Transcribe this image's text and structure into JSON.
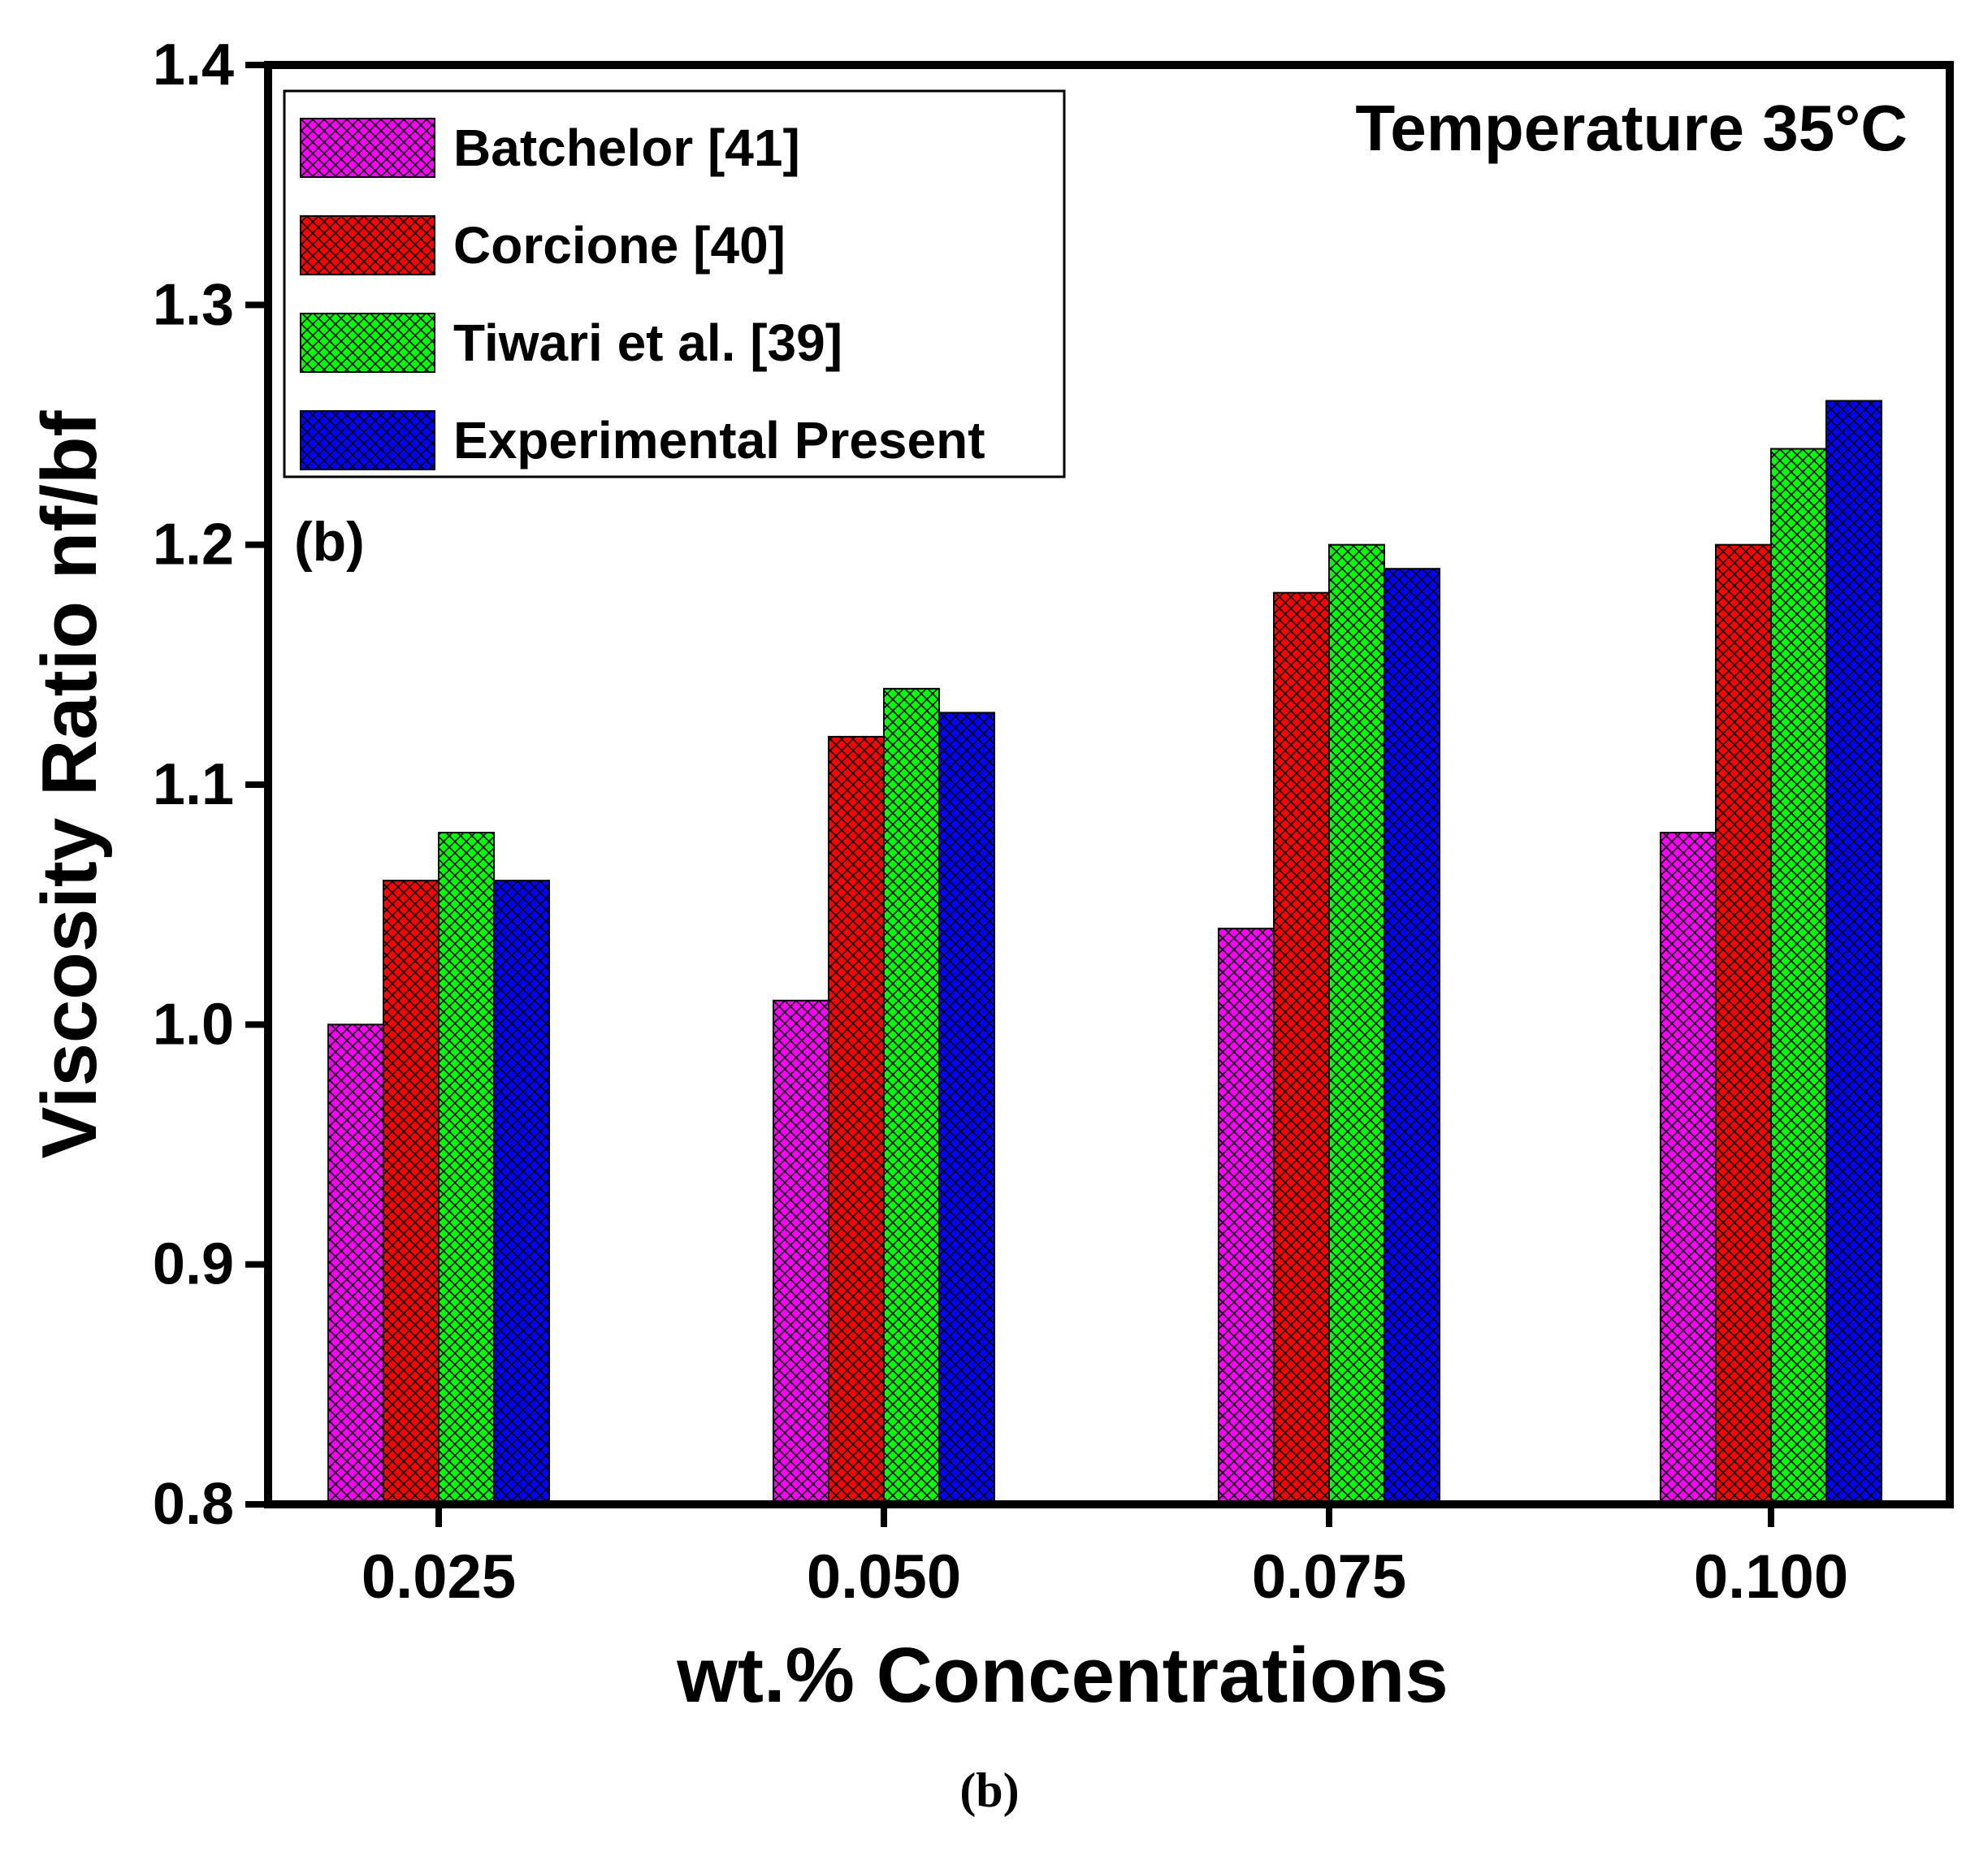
{
  "figure_caption": "(b)",
  "chart_data": {
    "type": "bar",
    "title": "Temperature 35°C",
    "panel_label": "(b)",
    "xlabel": "wt.% Concentrations",
    "ylabel": "Viscosity Ratio nf/bf",
    "categories": [
      "0.025",
      "0.050",
      "0.075",
      "0.100"
    ],
    "ylim": [
      0.8,
      1.4
    ],
    "yticks": [
      "0.8",
      "0.9",
      "1.0",
      "1.1",
      "1.2",
      "1.3",
      "1.4"
    ],
    "grid": false,
    "legend_position": "top-left",
    "series": [
      {
        "name": "Batchelor [41]",
        "color": "#ff00ff",
        "values": [
          1.0,
          1.01,
          1.04,
          1.08
        ]
      },
      {
        "name": "Corcione [40]",
        "color": "#ff0000",
        "values": [
          1.06,
          1.12,
          1.18,
          1.2
        ]
      },
      {
        "name": "Tiwari et al. [39]",
        "color": "#00ff00",
        "values": [
          1.08,
          1.14,
          1.2,
          1.24
        ]
      },
      {
        "name": "Experimental Present",
        "color": "#0000ff",
        "values": [
          1.06,
          1.13,
          1.19,
          1.26
        ]
      }
    ]
  }
}
